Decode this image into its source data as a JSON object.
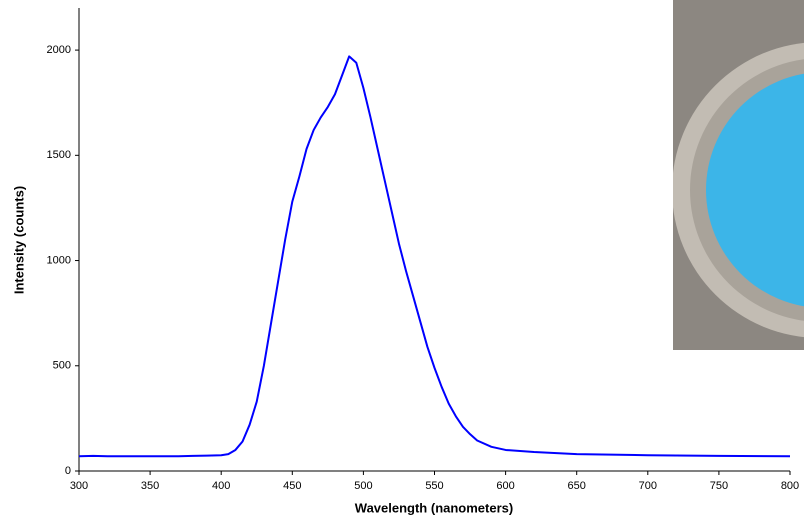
{
  "chart_data": {
    "type": "line",
    "xlabel": "Wavelength (nanometers)",
    "ylabel": "Intensity (counts)",
    "x": [
      300,
      310,
      320,
      330,
      340,
      350,
      360,
      370,
      380,
      390,
      400,
      405,
      410,
      415,
      420,
      425,
      430,
      435,
      440,
      445,
      450,
      455,
      460,
      465,
      470,
      475,
      480,
      485,
      490,
      495,
      500,
      505,
      510,
      515,
      520,
      525,
      530,
      535,
      540,
      545,
      550,
      555,
      560,
      565,
      570,
      575,
      580,
      590,
      600,
      620,
      650,
      700,
      750,
      800
    ],
    "values": [
      70,
      72,
      70,
      70,
      70,
      70,
      70,
      70,
      72,
      73,
      75,
      80,
      100,
      140,
      220,
      330,
      500,
      700,
      900,
      1100,
      1280,
      1400,
      1530,
      1620,
      1680,
      1730,
      1790,
      1880,
      1970,
      1940,
      1820,
      1680,
      1530,
      1380,
      1230,
      1080,
      950,
      830,
      710,
      590,
      490,
      400,
      320,
      260,
      210,
      175,
      145,
      115,
      100,
      90,
      80,
      75,
      72,
      70
    ],
    "color": "#0000ff",
    "xlim": [
      300,
      800
    ],
    "xticks": [
      300,
      350,
      400,
      450,
      500,
      550,
      600,
      650,
      700,
      750,
      800
    ],
    "ylim": [
      0,
      2200
    ],
    "yticks": [
      0,
      500,
      1000,
      1500,
      2000
    ],
    "grid": false
  }
}
